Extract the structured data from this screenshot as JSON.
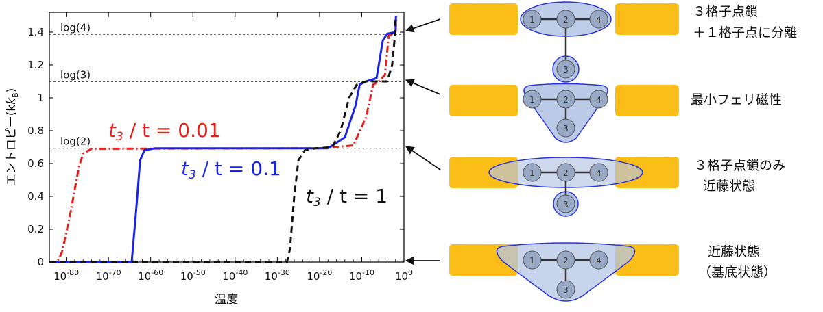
{
  "chart_data": {
    "type": "line",
    "title": "",
    "xlabel": "温度",
    "ylabel_main": "エントロピー",
    "ylabel_unit": "(k",
    "ylabel_unit_sub": "B",
    "ylabel_unit_close": ")",
    "x_scale": "log",
    "xlim_exponent": [
      -84,
      0
    ],
    "ylim": [
      0,
      1.5
    ],
    "x_tick_exponents": [
      "-80",
      "-70",
      "-60",
      "-50",
      "-40",
      "-30",
      "-20",
      "-10",
      "0"
    ],
    "x_tick_base": "10",
    "y_ticks": [
      "0",
      "0.2",
      "0.4",
      "0.6",
      "0.8",
      "1",
      "1.2",
      "1.4"
    ],
    "y_tick_values": [
      0,
      0.2,
      0.4,
      0.6,
      0.8,
      1.0,
      1.2,
      1.4
    ],
    "reference_lines": [
      {
        "label": "log(2)",
        "value": 0.693
      },
      {
        "label": "log(3)",
        "value": 1.0986
      },
      {
        "label": "log(4)",
        "value": 1.3863
      }
    ],
    "series": [
      {
        "name": "red",
        "ratio_label": "0.01",
        "color": "#e8201a",
        "dash": "dashdot",
        "points": [
          [
            -84,
            0
          ],
          [
            -82.2,
            0
          ],
          [
            -81,
            0.06
          ],
          [
            -79,
            0.3
          ],
          [
            -77,
            0.58
          ],
          [
            -76,
            0.66
          ],
          [
            -74,
            0.69
          ],
          [
            -20,
            0.693
          ],
          [
            -12,
            0.71
          ],
          [
            -9,
            0.88
          ],
          [
            -7.3,
            1.08
          ],
          [
            -6,
            1.1
          ],
          [
            -4.5,
            1.14
          ],
          [
            -3.6,
            1.38
          ],
          [
            -2,
            1.39
          ],
          [
            -1.8,
            1.5
          ]
        ]
      },
      {
        "name": "blue",
        "ratio_label": "0.1",
        "color": "#1a24e8",
        "dash": "solid",
        "points": [
          [
            -84,
            0
          ],
          [
            -64.5,
            0
          ],
          [
            -63.5,
            0.3
          ],
          [
            -62.5,
            0.62
          ],
          [
            -61.5,
            0.68
          ],
          [
            -59,
            0.693
          ],
          [
            -18,
            0.693
          ],
          [
            -14,
            0.76
          ],
          [
            -11.5,
            0.95
          ],
          [
            -10.5,
            1.08
          ],
          [
            -9,
            1.1
          ],
          [
            -6.5,
            1.12
          ],
          [
            -5,
            1.35
          ],
          [
            -4,
            1.39
          ],
          [
            -2,
            1.4
          ],
          [
            -1.9,
            1.5
          ]
        ]
      },
      {
        "name": "black",
        "ratio_label": "1",
        "color": "#111111",
        "dash": "dashed",
        "points": [
          [
            -84,
            0
          ],
          [
            -27.7,
            0
          ],
          [
            -27,
            0.08
          ],
          [
            -26,
            0.4
          ],
          [
            -25,
            0.62
          ],
          [
            -23.5,
            0.68
          ],
          [
            -21,
            0.693
          ],
          [
            -17,
            0.7
          ],
          [
            -15,
            0.8
          ],
          [
            -13,
            1.0
          ],
          [
            -11.2,
            1.08
          ],
          [
            -9,
            1.1
          ],
          [
            -4,
            1.1
          ],
          [
            -2.8,
            1.2
          ],
          [
            -2.1,
            1.39
          ],
          [
            -2,
            1.5
          ]
        ]
      }
    ],
    "annotation_prefix": "t",
    "annotation_prefix_sub": "3",
    "annotation_middle": " / t = "
  },
  "diagram": {
    "rows": [
      {
        "label_lines": [
          "３格子点鎖",
          "＋１格子点に分離"
        ]
      },
      {
        "label_lines": [
          "最小フェリ磁性"
        ]
      },
      {
        "label_lines": [
          "３格子点鎖のみ",
          "近藤状態"
        ]
      },
      {
        "label_lines": [
          "近藤状態",
          "（基底状態）"
        ]
      }
    ],
    "node_labels": [
      "1",
      "2",
      "4",
      "3"
    ],
    "lead_color": "#fbbd18",
    "cloud_color": "#b4c5e4",
    "node_color": "#98a9c6",
    "outline_color": "#2a35d8"
  }
}
